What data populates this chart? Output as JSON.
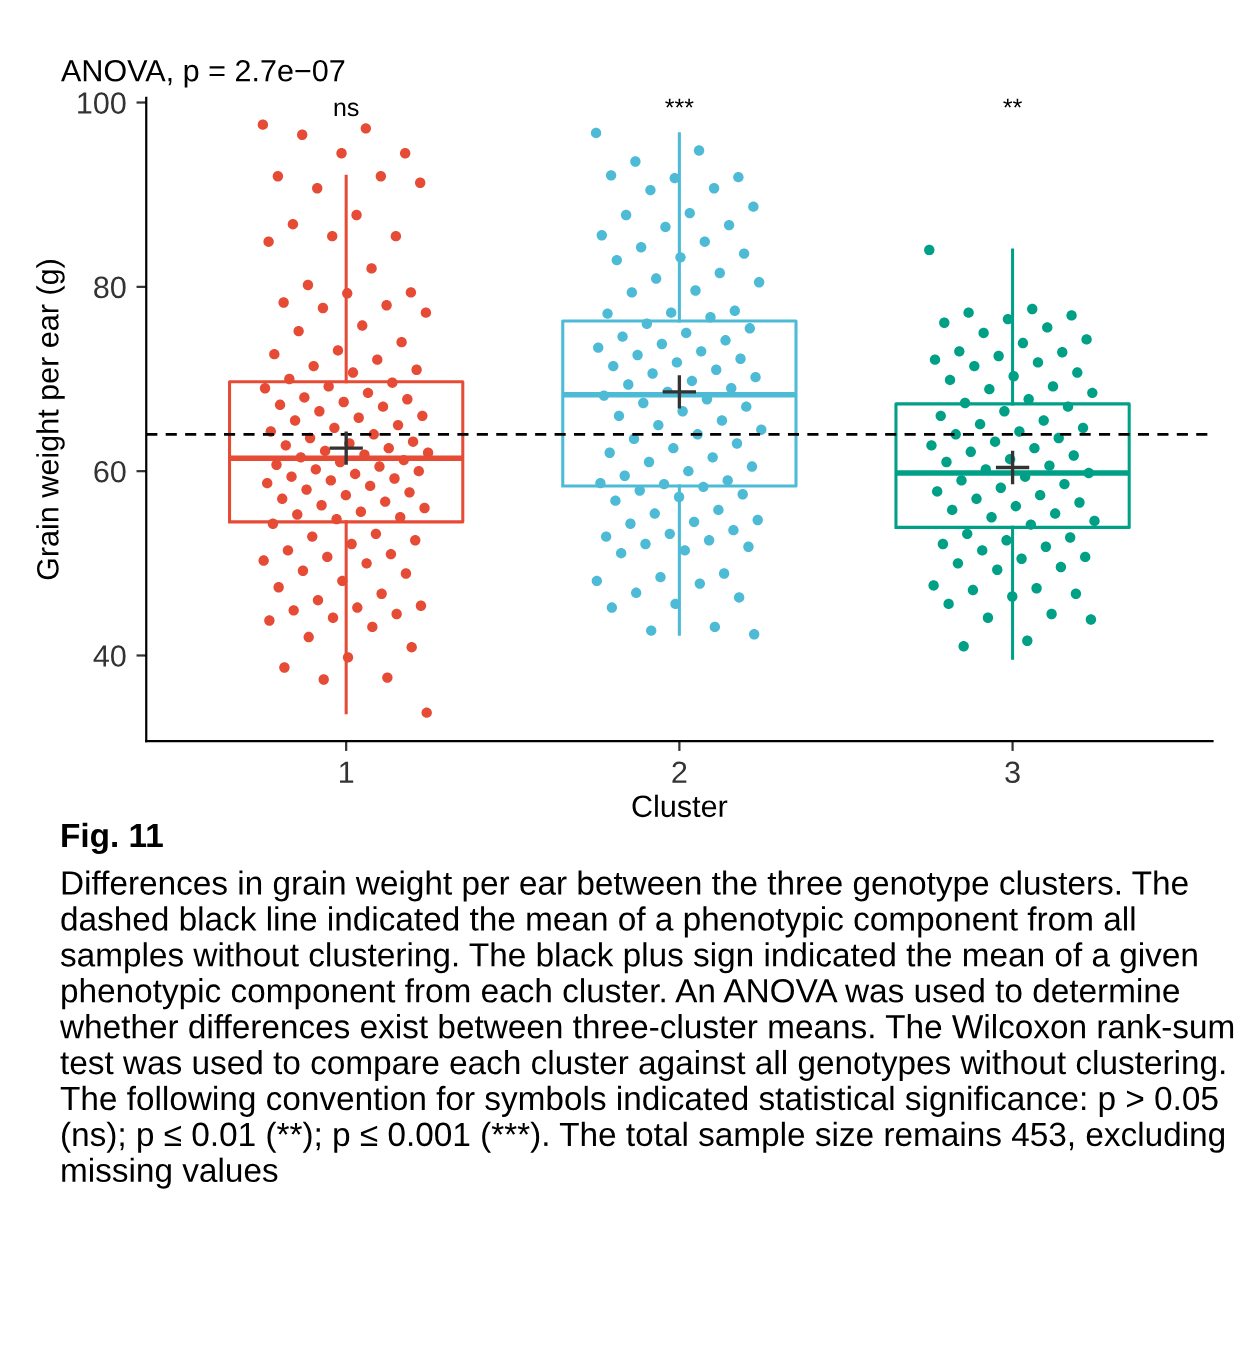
{
  "chart_data": {
    "type": "box",
    "title": "ANOVA, p = 2.7e−07",
    "xlabel": "Cluster",
    "ylabel": "Grain weight per ear (g)",
    "categories": [
      "1",
      "2",
      "3"
    ],
    "series": [
      {
        "color": "#e64b35",
        "boxes": [
          {
            "low": 33.8,
            "q1": 54.5,
            "median": 61.4,
            "q3": 69.7,
            "high": 92.0,
            "mean": 62.5
          },
          null,
          null
        ]
      },
      {
        "color": "#4dbbd5",
        "boxes": [
          null,
          {
            "low": 42.3,
            "q1": 58.4,
            "median": 68.3,
            "q3": 76.3,
            "high": 96.6,
            "mean": 68.6
          },
          null
        ]
      },
      {
        "color": "#00a087",
        "boxes": [
          null,
          null,
          {
            "low": 39.7,
            "q1": 53.9,
            "median": 59.8,
            "q3": 67.3,
            "high": 84.0,
            "mean": 60.4
          }
        ]
      },
      {
        "type": "scatter",
        "color": "#e64b35",
        "x": [
          "1",
          "1",
          "1",
          "1",
          "1",
          "1",
          "1",
          "1",
          "1",
          "1",
          "1",
          "1",
          "1",
          "1",
          "1",
          "1",
          "1",
          "1",
          "1",
          "1",
          "1",
          "1",
          "1",
          "1",
          "1",
          "1",
          "1",
          "1",
          "1",
          "1",
          "1",
          "1",
          "1",
          "1",
          "1",
          "1",
          "1",
          "1",
          "1",
          "1",
          "1",
          "1",
          "1",
          "1",
          "1",
          "1",
          "1",
          "1",
          "1",
          "1",
          "1",
          "1",
          "1",
          "1",
          "1",
          "1",
          "1",
          "1",
          "1",
          "1",
          "1",
          "1",
          "1",
          "1",
          "1",
          "1",
          "1",
          "1",
          "1",
          "1",
          "1",
          "1",
          "1",
          "1",
          "1",
          "1",
          "1",
          "1",
          "1",
          "1",
          "1",
          "1",
          "1",
          "1",
          "1",
          "1",
          "1",
          "1",
          "1",
          "1",
          "1",
          "1",
          "1",
          "1",
          "1",
          "1",
          "1",
          "1",
          "1",
          "1",
          "1",
          "1",
          "1",
          "1",
          "1",
          "1",
          "1",
          "1",
          "1",
          "1",
          "1"
        ],
        "values": [
          97.6,
          97.2,
          96.5,
          94.5,
          94.5,
          92,
          92,
          90.7,
          91.3,
          87.8,
          86.8,
          85.5,
          85.5,
          84.9,
          82,
          80.2,
          79.4,
          79.3,
          78.3,
          78,
          77.7,
          77.2,
          75.8,
          75.2,
          74,
          73.1,
          72.7,
          72.1,
          71.4,
          71,
          70.7,
          70,
          69.6,
          69.2,
          69,
          68.5,
          68,
          67.8,
          67.5,
          67.2,
          67,
          66.5,
          66,
          65.8,
          65.5,
          65,
          64.7,
          64.3,
          64,
          63.6,
          63.2,
          63,
          62.8,
          62.5,
          62.2,
          62,
          61.8,
          61.5,
          61.2,
          61,
          60.7,
          60.5,
          60.2,
          60,
          59.7,
          59.4,
          59.2,
          59,
          58.7,
          58.4,
          58,
          57.7,
          57.4,
          57,
          56.7,
          56.3,
          56,
          55.6,
          55.3,
          55,
          54.8,
          54.3,
          53.2,
          52.9,
          52.5,
          52.1,
          51.4,
          51,
          50.7,
          50.3,
          50,
          49.2,
          48.9,
          48.1,
          47.4,
          46.7,
          46,
          45.4,
          45.2,
          44.9,
          44.5,
          44.1,
          43.8,
          43.1,
          42,
          40.9,
          39.8,
          38.7,
          37.6,
          37.4,
          33.8
        ]
      },
      {
        "type": "scatter",
        "color": "#4dbbd5",
        "x": [
          "2",
          "2",
          "2",
          "2",
          "2",
          "2",
          "2",
          "2",
          "2",
          "2",
          "2",
          "2",
          "2",
          "2",
          "2",
          "2",
          "2",
          "2",
          "2",
          "2",
          "2",
          "2",
          "2",
          "2",
          "2",
          "2",
          "2",
          "2",
          "2",
          "2",
          "2",
          "2",
          "2",
          "2",
          "2",
          "2",
          "2",
          "2",
          "2",
          "2",
          "2",
          "2",
          "2",
          "2",
          "2",
          "2",
          "2",
          "2",
          "2",
          "2",
          "2",
          "2",
          "2",
          "2",
          "2",
          "2",
          "2",
          "2",
          "2",
          "2",
          "2",
          "2",
          "2",
          "2",
          "2",
          "2",
          "2",
          "2",
          "2",
          "2",
          "2",
          "2",
          "2",
          "2",
          "2",
          "2",
          "2",
          "2",
          "2",
          "2",
          "2",
          "2",
          "2",
          "2",
          "2",
          "2",
          "2",
          "2",
          "2",
          "2",
          "2",
          "2",
          "2",
          "2",
          "2",
          "2",
          "2",
          "2"
        ],
        "values": [
          96.7,
          94.8,
          93.6,
          91.9,
          91.8,
          92.1,
          90.7,
          90.5,
          88.7,
          88,
          87.8,
          86.7,
          86.5,
          85.6,
          84.9,
          84.3,
          83.6,
          83.2,
          82.9,
          81.5,
          80.9,
          80.5,
          79.6,
          79.4,
          77.4,
          77.2,
          77.1,
          76.7,
          76,
          75.5,
          75,
          74.6,
          74.2,
          73.8,
          73.4,
          73,
          72.6,
          72.2,
          71.8,
          71.4,
          71,
          70.6,
          70.2,
          69.8,
          69.4,
          69,
          68.6,
          68.2,
          67.8,
          67.4,
          67,
          66.5,
          66,
          65.5,
          65,
          64.5,
          64,
          63.5,
          63,
          62.5,
          62,
          61.5,
          61,
          60.5,
          60,
          59.5,
          59,
          58.6,
          58.7,
          58.3,
          57.9,
          57.5,
          57.2,
          56.8,
          55.8,
          55.4,
          54.7,
          54.5,
          54.3,
          53.6,
          53.2,
          52.9,
          52.5,
          52.1,
          51.8,
          51.4,
          51.1,
          48.9,
          48.5,
          48.1,
          47.8,
          46.8,
          46.3,
          45.6,
          45.2,
          43.1,
          42.7,
          42.3
        ]
      },
      {
        "type": "scatter",
        "color": "#00a087",
        "x": [
          "3",
          "3",
          "3",
          "3",
          "3",
          "3",
          "3",
          "3",
          "3",
          "3",
          "3",
          "3",
          "3",
          "3",
          "3",
          "3",
          "3",
          "3",
          "3",
          "3",
          "3",
          "3",
          "3",
          "3",
          "3",
          "3",
          "3",
          "3",
          "3",
          "3",
          "3",
          "3",
          "3",
          "3",
          "3",
          "3",
          "3",
          "3",
          "3",
          "3",
          "3",
          "3",
          "3",
          "3",
          "3",
          "3",
          "3",
          "3",
          "3",
          "3",
          "3",
          "3",
          "3",
          "3",
          "3",
          "3",
          "3",
          "3",
          "3",
          "3",
          "3",
          "3",
          "3",
          "3",
          "3",
          "3",
          "3",
          "3",
          "3",
          "3",
          "3",
          "3",
          "3",
          "3",
          "3",
          "3",
          "3",
          "3",
          "3"
        ],
        "values": [
          84.0,
          77.6,
          77.2,
          76.9,
          76.5,
          76.1,
          75.6,
          75,
          74.3,
          73.9,
          73,
          72.9,
          72.5,
          72.1,
          71.8,
          71.4,
          70.7,
          70.3,
          69.9,
          69.2,
          68.9,
          68.5,
          67.8,
          67.4,
          67,
          66.5,
          66,
          65.5,
          65.1,
          64.7,
          64.3,
          64,
          63.6,
          63.2,
          62.8,
          62.5,
          62.1,
          61.7,
          61.3,
          61,
          60.6,
          60.2,
          59.8,
          59.4,
          59,
          58.6,
          58.2,
          57.8,
          57.4,
          57,
          56.6,
          56.2,
          55.8,
          55.4,
          55,
          54.6,
          54.2,
          53.2,
          52.8,
          52.5,
          52.1,
          51.8,
          51.4,
          50.7,
          50.5,
          50,
          49.6,
          49.3,
          47.6,
          47.3,
          47.1,
          46.7,
          46.4,
          45.6,
          44.5,
          44.1,
          43.9,
          41.6,
          41
        ]
      }
    ],
    "ref_lines": [
      {
        "axis": "y",
        "value": 64,
        "color": "#000000",
        "line_style": "dashed"
      }
    ],
    "ylim": [
      30.7,
      100.5
    ],
    "yticks": [
      40,
      60,
      80,
      100
    ],
    "grid": false,
    "legend": false,
    "marker": "circle",
    "annotations": [
      "ns",
      "***",
      "**",
      "Fig. 11",
      "Differences in grain weight per ear between the three genotype clusters. The dashed black line indicated the mean of a phenotypic component from all samples without clustering. The black plus sign indicated the mean of a given phenotypic component from each cluster. An ANOVA was used to determine whether differences exist between three-cluster means. The Wilcoxon rank-sum test was used to compare each cluster against all genotypes without clustering. The following convention for symbols indicated statistical significance: p > 0.05 (ns); p ≤ 0.01 (**); p ≤ 0.001 (***). The total sample size remains 453, excluding missing values"
    ]
  }
}
